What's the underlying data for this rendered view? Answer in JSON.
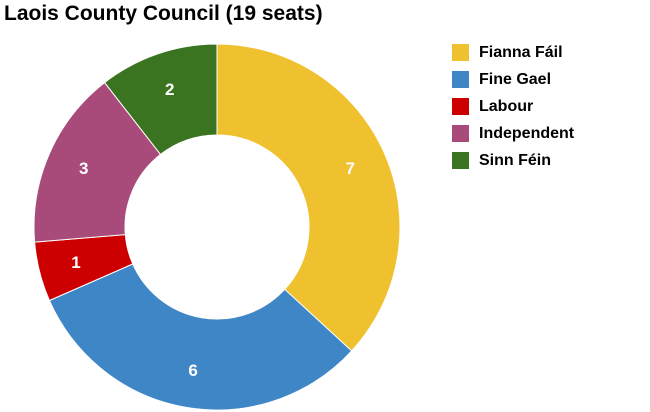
{
  "chart_data": {
    "type": "pie",
    "variant": "donut",
    "title": "Laois County Council (19 seats)",
    "legend_position": "right",
    "series": [
      {
        "name": "Fianna Fáil",
        "value": 7,
        "color": "#f0c12f"
      },
      {
        "name": "Fine Gael",
        "value": 6,
        "color": "#3f86c6"
      },
      {
        "name": "Labour",
        "value": 1,
        "color": "#cc0000"
      },
      {
        "name": "Independent",
        "value": 3,
        "color": "#a84b7a"
      },
      {
        "name": "Sinn Féin",
        "value": 2,
        "color": "#3a7420"
      }
    ]
  }
}
